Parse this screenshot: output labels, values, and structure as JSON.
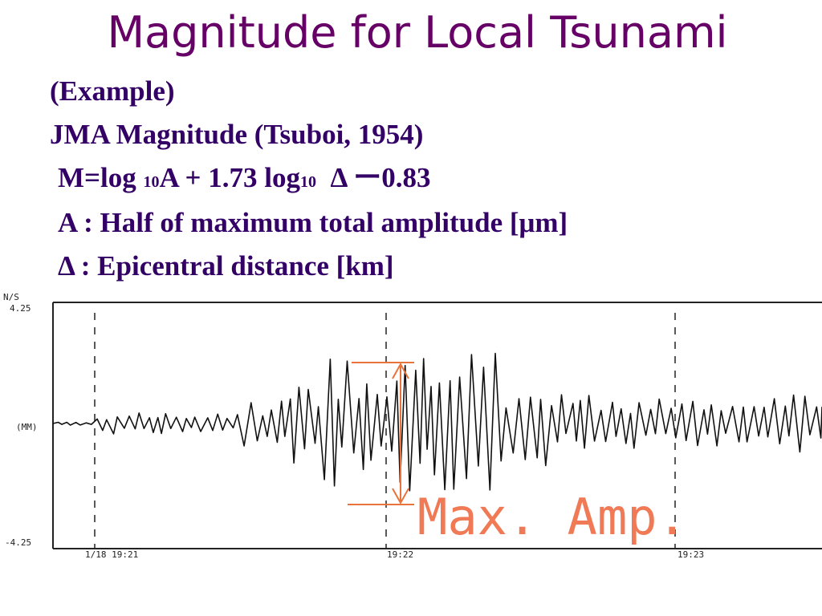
{
  "slide": {
    "title": "Magnitude for Local Tsunami",
    "example_label": "(Example)",
    "jma_line": "JMA Magnitude (Tsuboi,  1954)",
    "formula": {
      "part1": "M=log ",
      "sub1": "10",
      "part2": "A + 1.73 log",
      "sub2": "10",
      "part3": "  Δ ー0.83"
    },
    "def_a": "A : Half of maximum total amplitude [μm]",
    "def_delta": "Δ : Epicentral distance [km]"
  },
  "seismogram": {
    "channel_label": "N/S",
    "top_value_label": "4.25",
    "unit_label": "(MM)",
    "bottom_value_label": "-4.25",
    "time_labels": [
      "1/18  19:21",
      "19:22",
      "19:23"
    ],
    "annotation": "Max. Amp.",
    "colors": {
      "trace": "#111111",
      "annotation": "#ef7a55",
      "arrow": "#e8743b"
    }
  }
}
